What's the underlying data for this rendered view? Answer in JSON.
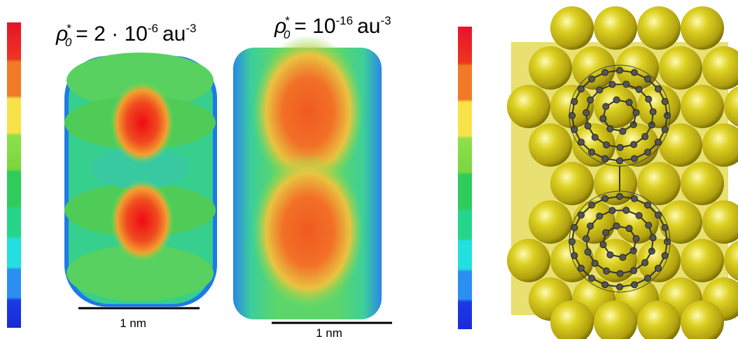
{
  "panels": [
    {
      "title": {
        "symbol": "ρ",
        "sup": "*",
        "sub": "0",
        "text": "= 2 · 10",
        "exp": "-6",
        "unit": "au",
        "unit_exp": "-3"
      },
      "scale_bar": "1 nm"
    },
    {
      "title": {
        "symbol": "ρ",
        "sup": "*",
        "sub": "0",
        "text": "= 10",
        "exp": "-16",
        "unit": "au",
        "unit_exp": "-3"
      },
      "scale_bar": "1 nm"
    }
  ]
}
